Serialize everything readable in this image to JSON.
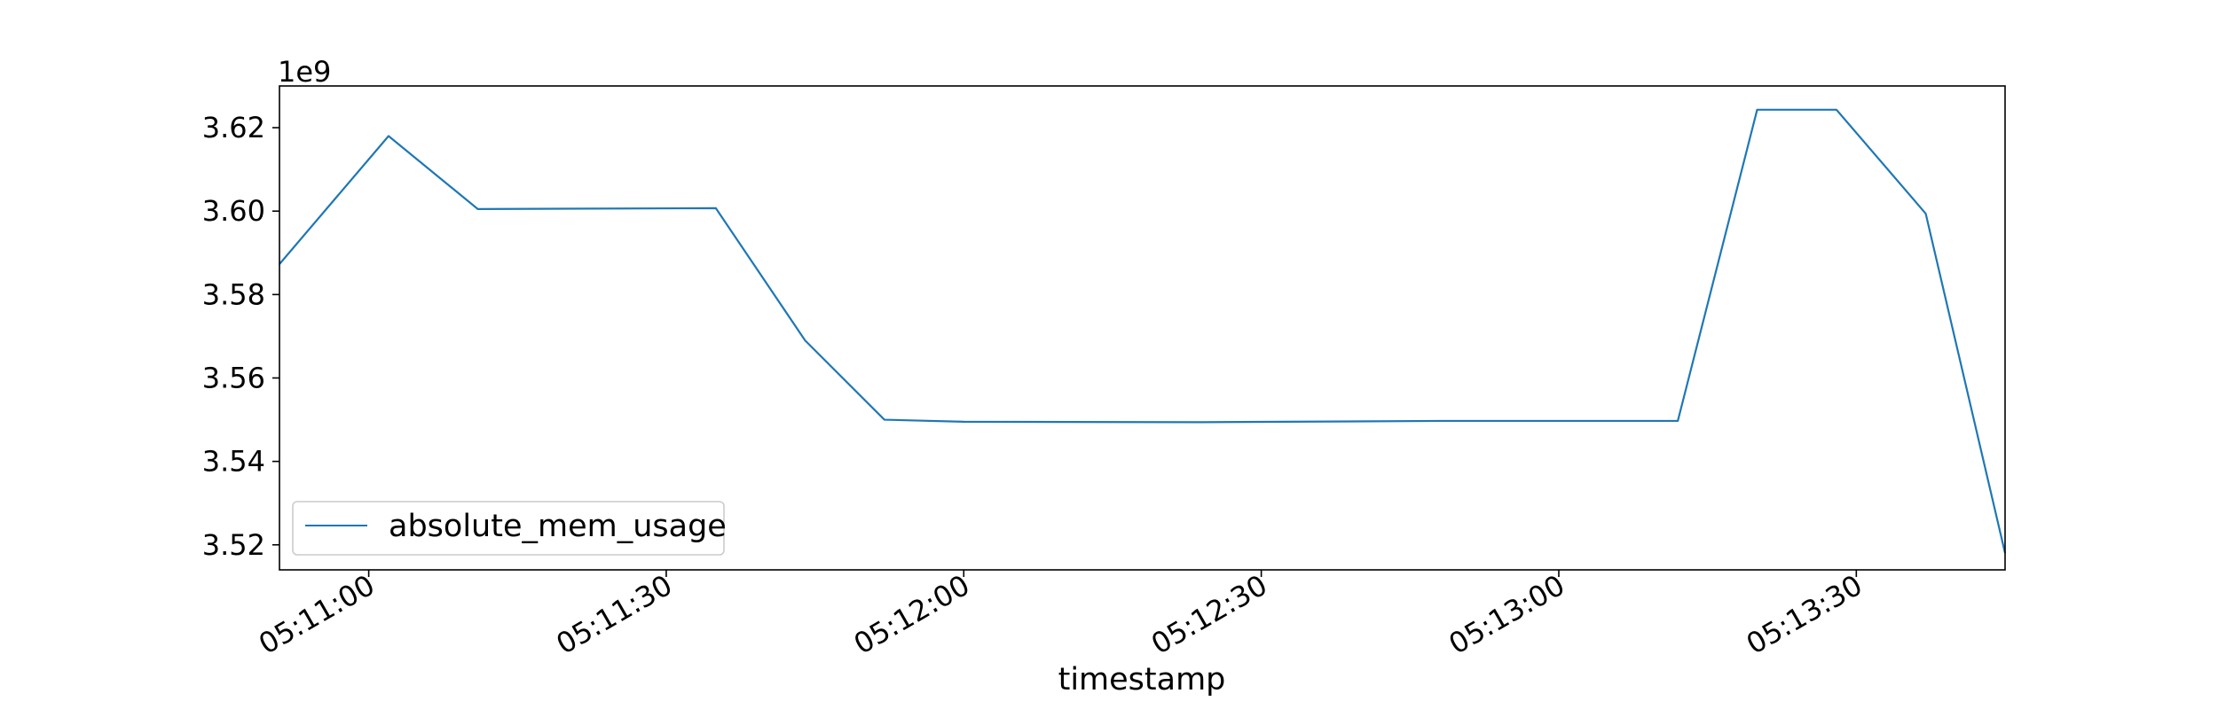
{
  "chart_data": {
    "type": "line",
    "title": "",
    "xlabel": "timestamp",
    "ylabel": "",
    "y_offset_label": "1e9",
    "xlim": [
      "05:10:51",
      "05:13:45"
    ],
    "ylim": [
      3.514,
      3.63
    ],
    "x_ticks": [
      {
        "value": "05:11:00",
        "label": "05:11:00"
      },
      {
        "value": "05:11:30",
        "label": "05:11:30"
      },
      {
        "value": "05:12:00",
        "label": "05:12:00"
      },
      {
        "value": "05:12:30",
        "label": "05:12:30"
      },
      {
        "value": "05:13:00",
        "label": "05:13:00"
      },
      {
        "value": "05:13:30",
        "label": "05:13:30"
      }
    ],
    "y_ticks": [
      {
        "value": 3.52,
        "label": "3.52"
      },
      {
        "value": 3.54,
        "label": "3.54"
      },
      {
        "value": 3.56,
        "label": "3.56"
      },
      {
        "value": 3.58,
        "label": "3.58"
      },
      {
        "value": 3.6,
        "label": "3.60"
      },
      {
        "value": 3.62,
        "label": "3.62"
      }
    ],
    "grid": false,
    "legend": {
      "position": "lower-left"
    },
    "series": [
      {
        "name": "absolute_mem_usage",
        "color": "#1f77b4",
        "points": [
          {
            "x": "05:10:51",
            "y": 3.5873
          },
          {
            "x": "05:11:02",
            "y": 3.618
          },
          {
            "x": "05:11:11",
            "y": 3.6005
          },
          {
            "x": "05:11:35",
            "y": 3.6007
          },
          {
            "x": "05:11:44",
            "y": 3.569
          },
          {
            "x": "05:11:52",
            "y": 3.55
          },
          {
            "x": "05:12:00",
            "y": 3.5495
          },
          {
            "x": "05:12:24",
            "y": 3.5494
          },
          {
            "x": "05:12:48",
            "y": 3.5497
          },
          {
            "x": "05:13:12",
            "y": 3.5497
          },
          {
            "x": "05:13:20",
            "y": 3.6243
          },
          {
            "x": "05:13:28",
            "y": 3.6243
          },
          {
            "x": "05:13:37",
            "y": 3.5994
          },
          {
            "x": "05:13:45",
            "y": 3.518
          }
        ]
      }
    ]
  }
}
